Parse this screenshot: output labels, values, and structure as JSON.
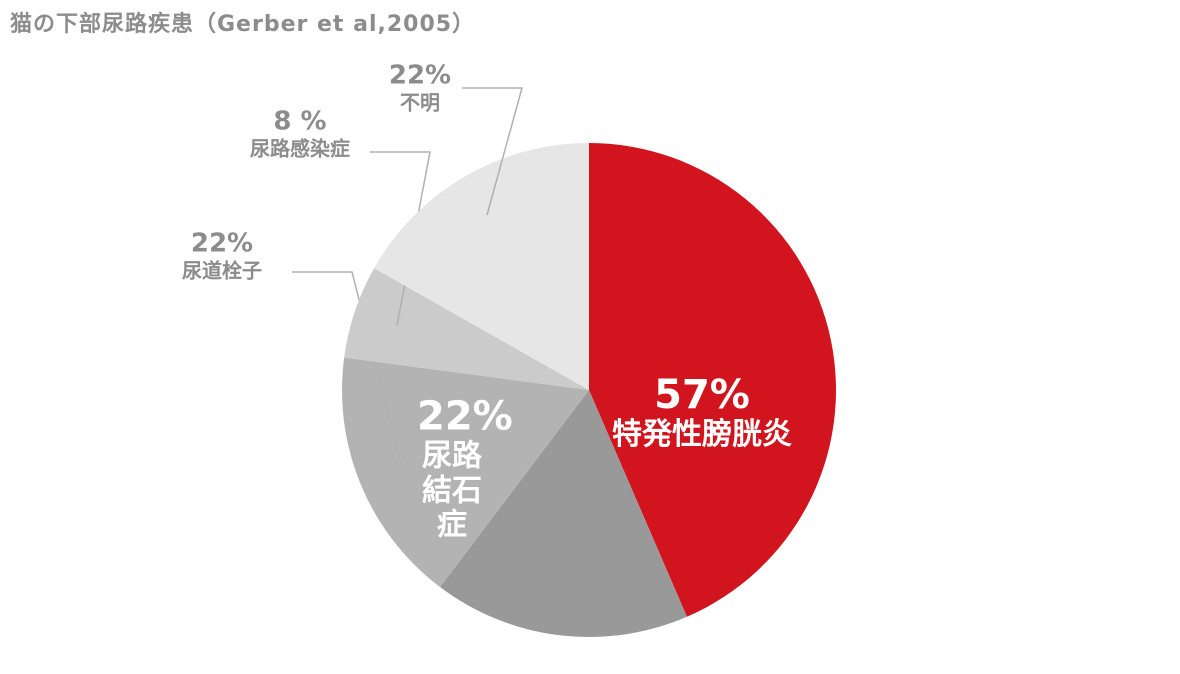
{
  "chart_data": {
    "type": "pie",
    "title": "猫の下部尿路疾患（Gerber et al,2005）",
    "categories": [
      "特発性膀胱炎",
      "尿路結石症",
      "尿道栓子",
      "尿路感染症",
      "不明"
    ],
    "values": [
      57,
      22,
      22,
      8,
      22
    ],
    "value_labels": [
      "57%",
      "22%",
      "22%",
      "8 %",
      "22%"
    ],
    "colors": [
      "#d2141e",
      "#999999",
      "#b3b3b3",
      "#cbcbcb",
      "#e6e6e6"
    ]
  }
}
